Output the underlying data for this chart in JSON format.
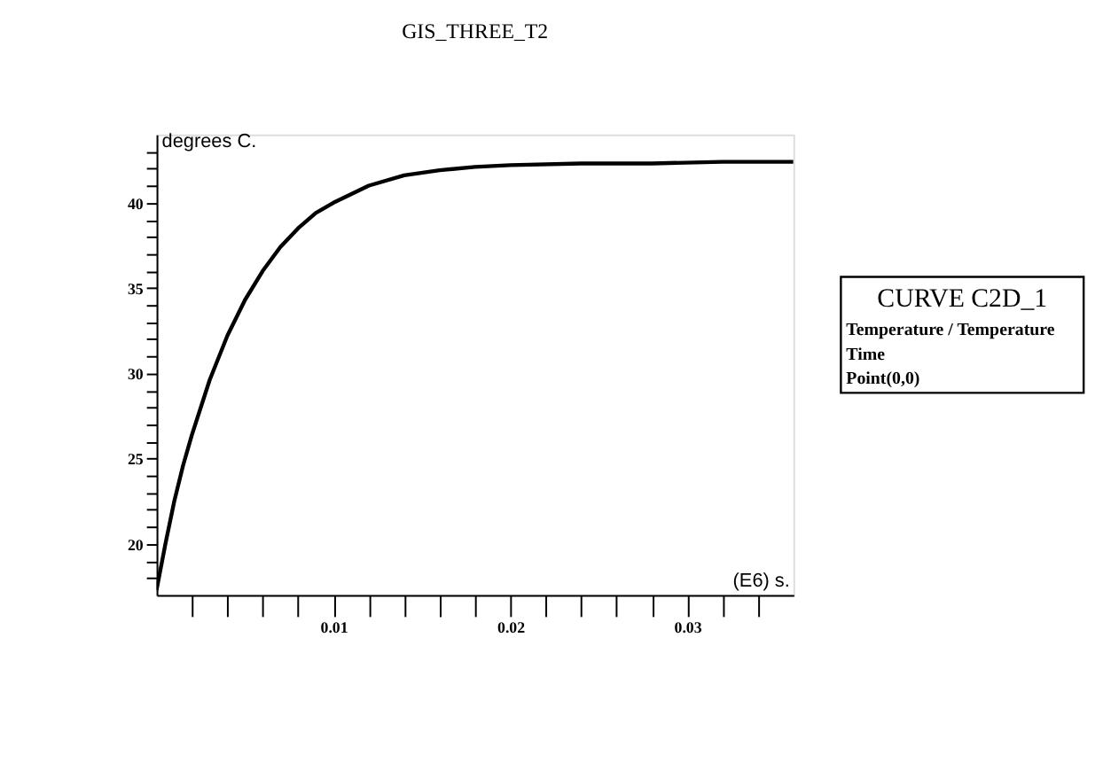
{
  "chart_data": {
    "type": "line",
    "title": "GIS_THREE_T2",
    "xlabel": "(E6) s.",
    "ylabel": "degrees C.",
    "x": [
      0,
      0.0005,
      0.001,
      0.0015,
      0.002,
      0.003,
      0.004,
      0.005,
      0.006,
      0.007,
      0.008,
      0.009,
      0.01,
      0.012,
      0.014,
      0.016,
      0.018,
      0.02,
      0.024,
      0.028,
      0.032,
      0.036
    ],
    "series": [
      {
        "color": "#000000",
        "values": [
          17.3,
          20,
          22.5,
          24.6,
          26.4,
          29.6,
          32.2,
          34.3,
          36.0,
          37.4,
          38.5,
          39.4,
          40.0,
          41.0,
          41.6,
          41.9,
          42.1,
          42.2,
          42.3,
          42.3,
          42.4,
          42.4
        ]
      }
    ],
    "xlim": [
      0,
      0.036
    ],
    "ylim": [
      17,
      44
    ],
    "xticks": [
      {
        "value": 0.002,
        "label": null
      },
      {
        "value": 0.004,
        "label": null
      },
      {
        "value": 0.006,
        "label": null
      },
      {
        "value": 0.008,
        "label": null
      },
      0.01,
      {
        "value": 0.012,
        "label": null
      },
      {
        "value": 0.014,
        "label": null
      },
      {
        "value": 0.016,
        "label": null
      },
      {
        "value": 0.018,
        "label": null
      },
      0.02,
      {
        "value": 0.022,
        "label": null
      },
      {
        "value": 0.024,
        "label": null
      },
      {
        "value": 0.026,
        "label": null
      },
      {
        "value": 0.028,
        "label": null
      },
      0.03,
      {
        "value": 0.032,
        "label": null
      },
      {
        "value": 0.034,
        "label": null
      }
    ],
    "yticks": [
      {
        "value": 18,
        "label": null
      },
      {
        "value": 19,
        "label": null
      },
      20,
      {
        "value": 21,
        "label": null
      },
      {
        "value": 22,
        "label": null
      },
      {
        "value": 23,
        "label": null
      },
      {
        "value": 24,
        "label": null
      },
      25,
      {
        "value": 26,
        "label": null
      },
      {
        "value": 27,
        "label": null
      },
      {
        "value": 28,
        "label": null
      },
      {
        "value": 29,
        "label": null
      },
      30,
      {
        "value": 31,
        "label": null
      },
      {
        "value": 32,
        "label": null
      },
      {
        "value": 33,
        "label": null
      },
      {
        "value": 34,
        "label": null
      },
      35,
      {
        "value": 36,
        "label": null
      },
      {
        "value": 37,
        "label": null
      },
      {
        "value": 38,
        "label": null
      },
      {
        "value": 39,
        "label": null
      },
      40,
      {
        "value": 41,
        "label": null
      },
      {
        "value": 42,
        "label": null
      },
      {
        "value": 43,
        "label": null
      }
    ],
    "grid": false,
    "marker": "none",
    "line_style": "solid",
    "annotations": [
      "CURVE C2D_1",
      "Temperature / Temperature",
      "Time",
      "Point(0,0)"
    ]
  }
}
